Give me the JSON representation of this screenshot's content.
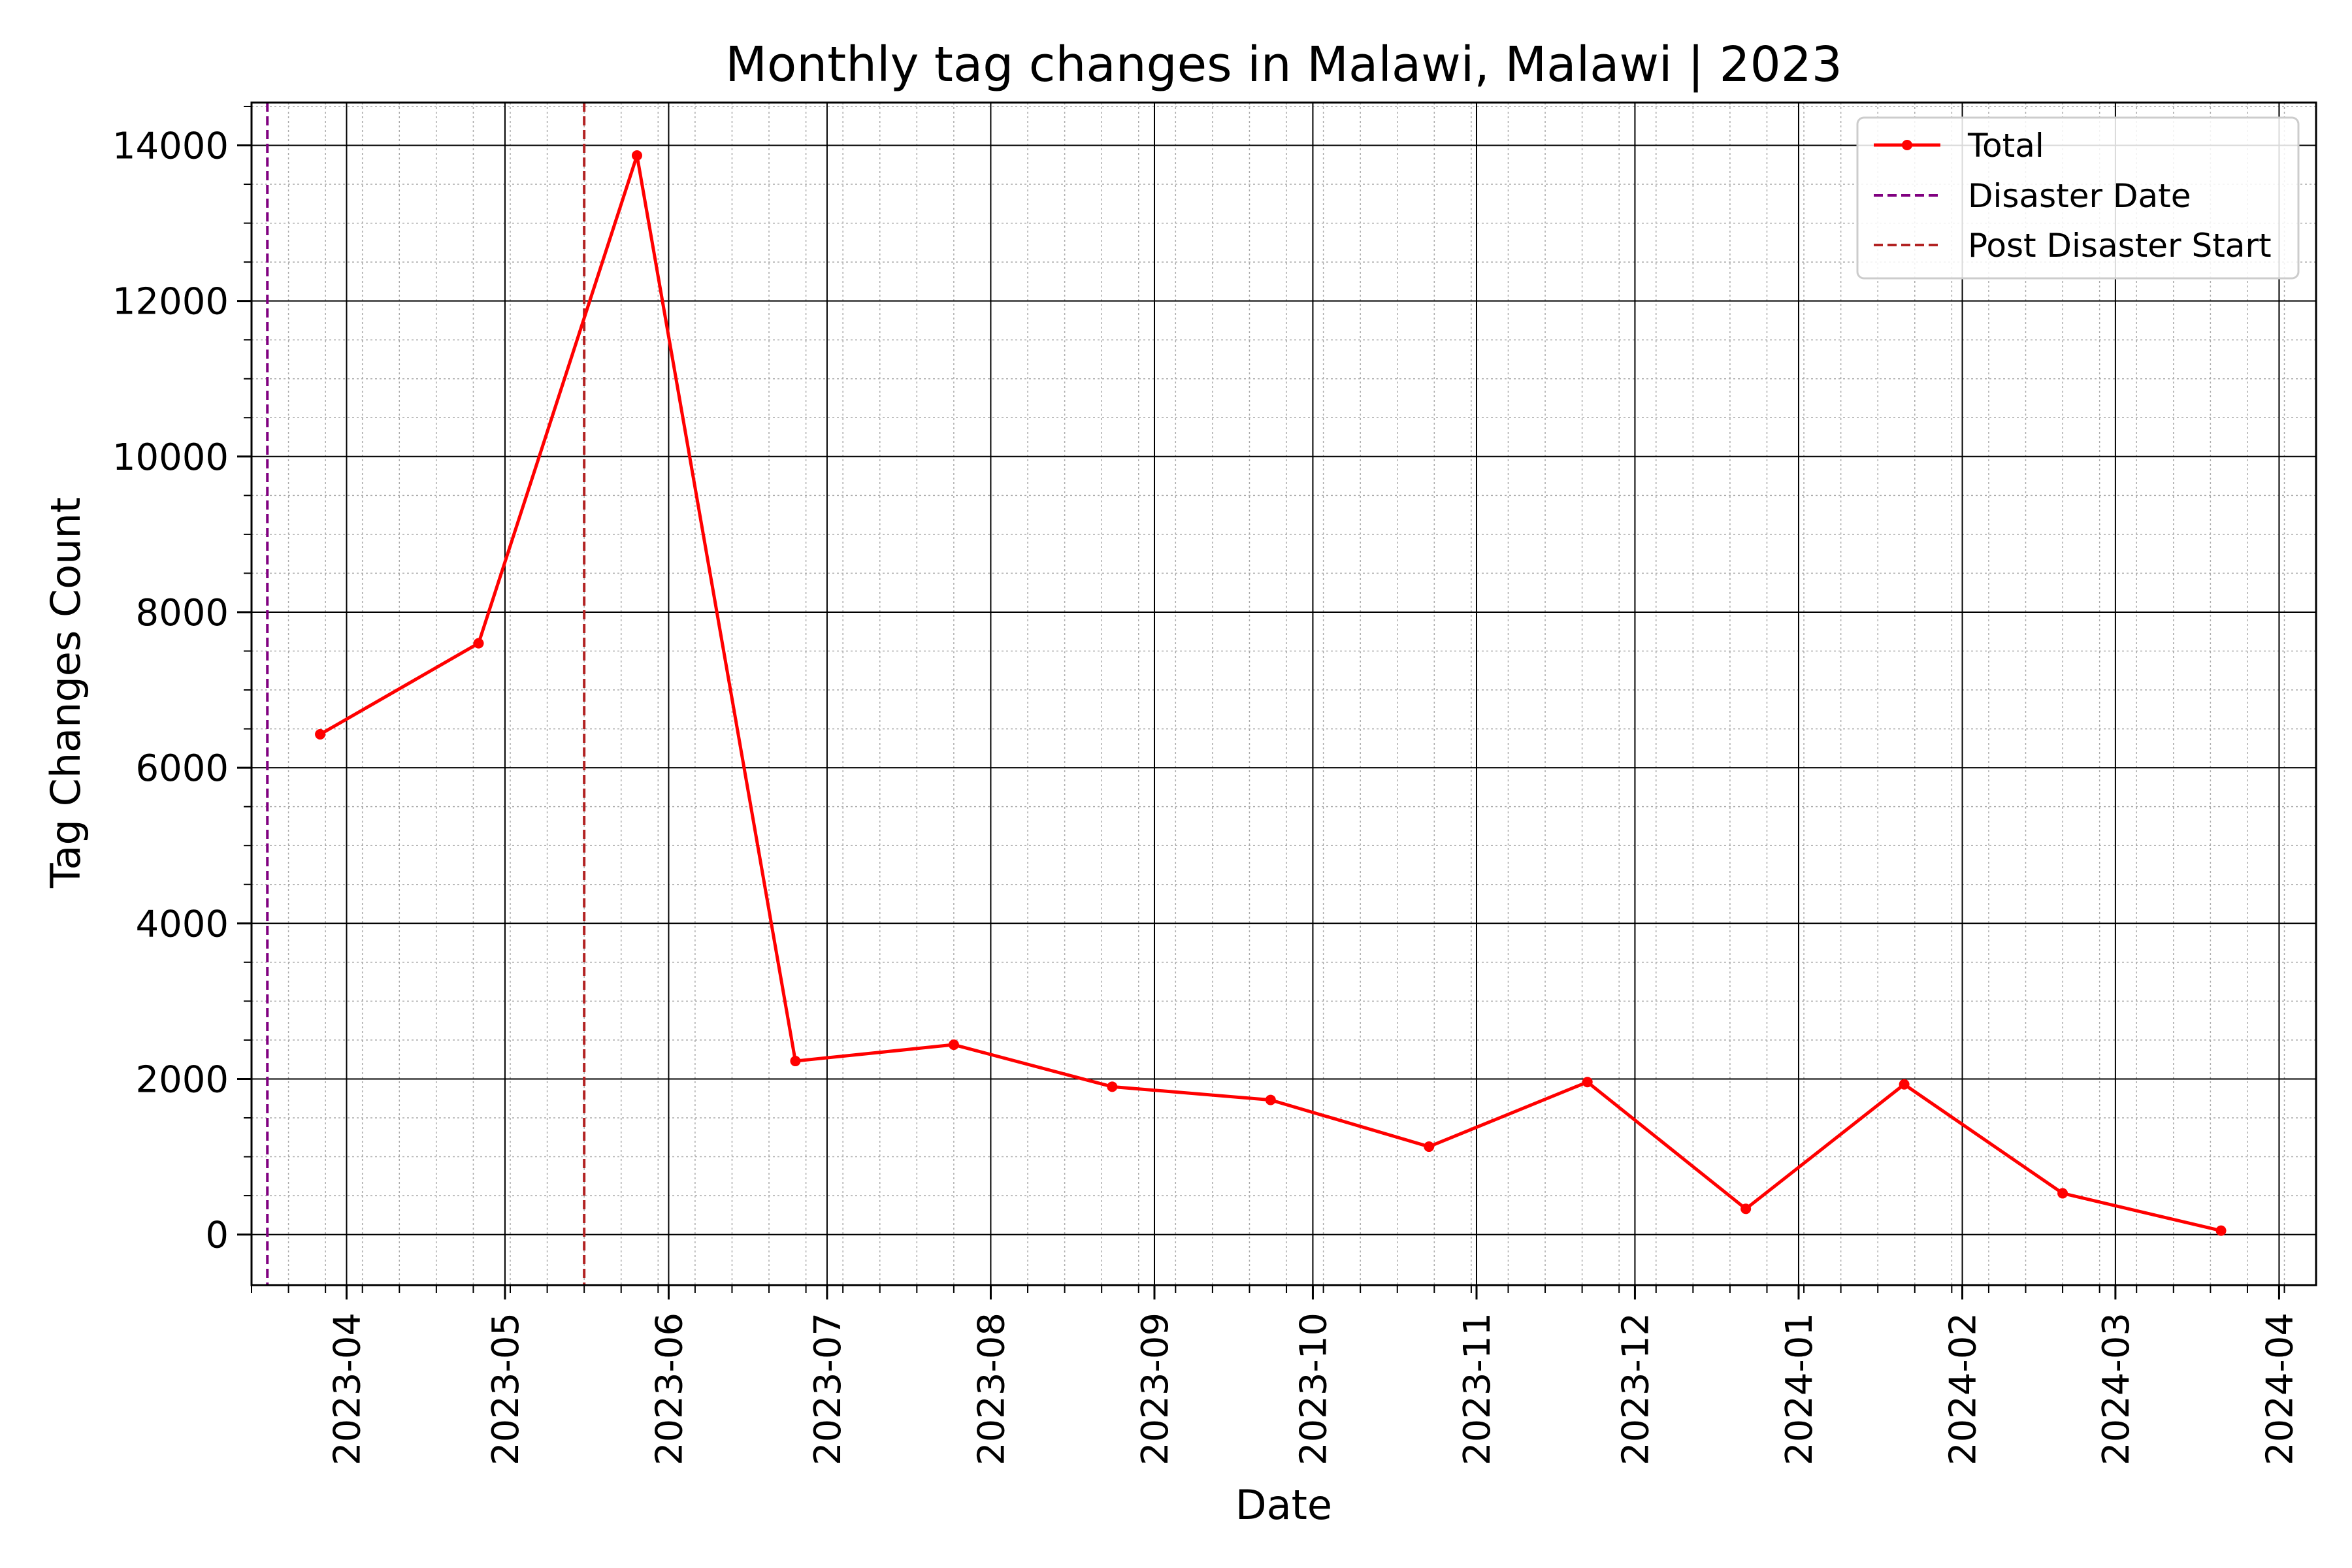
{
  "chart_data": {
    "type": "line",
    "title": "Monthly tag changes in Malawi, Malawi | 2023",
    "xlabel": "Date",
    "ylabel": "Tag Changes Count",
    "x_tick_labels": [
      "2023-04",
      "2023-05",
      "2023-06",
      "2023-07",
      "2023-08",
      "2023-09",
      "2023-10",
      "2023-11",
      "2023-12",
      "2024-01",
      "2024-02",
      "2024-03",
      "2024-04"
    ],
    "y_tick_labels": [
      "0",
      "2000",
      "4000",
      "6000",
      "8000",
      "10000",
      "12000",
      "14000"
    ],
    "ylim": [
      -650,
      14550
    ],
    "xlim": [
      "2023-03-14",
      "2024-04-08"
    ],
    "grid": true,
    "minor_grid": true,
    "legend_position": "top-right",
    "series": [
      {
        "name": "Total",
        "color": "#ff0000",
        "marker": "circle",
        "x": [
          "2023-03-27",
          "2023-04-26",
          "2023-05-26",
          "2023-06-25",
          "2023-07-25",
          "2023-08-24",
          "2023-09-23",
          "2023-10-23",
          "2023-11-22",
          "2023-12-22",
          "2024-01-21",
          "2024-02-20",
          "2024-03-21"
        ],
        "y": [
          6430,
          7600,
          13870,
          2230,
          2440,
          1900,
          1730,
          1130,
          1960,
          330,
          1930,
          530,
          50
        ]
      }
    ],
    "vlines": [
      {
        "name": "Disaster Date",
        "x": "2023-03-17",
        "color": "#800080",
        "style": "dashed"
      },
      {
        "name": "Post Disaster Start",
        "x": "2023-05-16",
        "color": "#b22222",
        "style": "dashed"
      }
    ]
  }
}
